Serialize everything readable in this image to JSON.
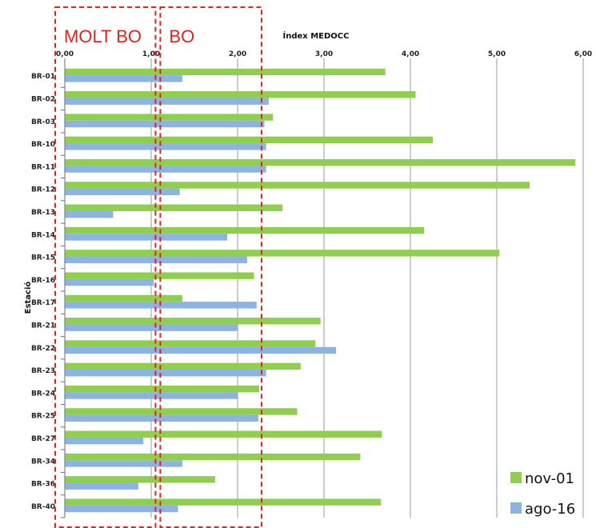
{
  "chart_data": {
    "type": "bar",
    "orientation": "horizontal",
    "xlabel": "Índex MEDOCC",
    "ylabel": "Estació",
    "xlim": [
      0,
      6
    ],
    "x_ticks": [
      "0,00",
      "1,00",
      "2,00",
      "3,00",
      "4,00",
      "5,00",
      "6,00"
    ],
    "categories": [
      "BR-01",
      "BR-02",
      "BR-03",
      "BR-10",
      "BR-11",
      "BR-12",
      "BR-13",
      "BR-14",
      "BR-15",
      "BR-16",
      "BR-17",
      "BR-21",
      "BR-22",
      "BR-23",
      "BR-24",
      "BR-25",
      "BR-27",
      "BR-34",
      "BR-36",
      "BR-40"
    ],
    "series": [
      {
        "name": "nov-01",
        "color": "#8fce4f",
        "values": [
          3.71,
          4.06,
          2.41,
          4.26,
          5.91,
          5.38,
          2.52,
          4.16,
          5.03,
          2.19,
          1.36,
          2.96,
          2.9,
          2.73,
          2.25,
          2.69,
          3.67,
          3.42,
          1.74,
          3.66
        ]
      },
      {
        "name": "ago-16",
        "color": "#8db3e2",
        "values": [
          1.36,
          2.36,
          2.31,
          2.33,
          2.33,
          1.33,
          0.56,
          1.88,
          2.11,
          1.03,
          2.22,
          2.0,
          3.14,
          2.33,
          2.0,
          2.24,
          0.91,
          1.36,
          0.85,
          1.31
        ]
      }
    ],
    "grid": true,
    "legend_position": "bottom-right",
    "annotations": [
      {
        "label": "MOLT BO",
        "x_range": [
          0,
          1.05
        ],
        "style": "red dashed box"
      },
      {
        "label": "BO",
        "x_range": [
          1.05,
          2.25
        ],
        "style": "red dashed box"
      }
    ]
  }
}
